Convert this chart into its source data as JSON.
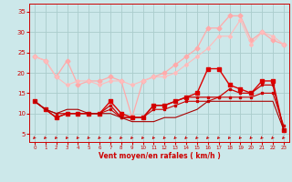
{
  "title": "",
  "xlabel": "Vent moyen/en rafales ( km/h )",
  "xlim": [
    -0.5,
    23.5
  ],
  "ylim": [
    3,
    37
  ],
  "yticks": [
    5,
    10,
    15,
    20,
    25,
    30,
    35
  ],
  "xticks": [
    0,
    1,
    2,
    3,
    4,
    5,
    6,
    7,
    8,
    9,
    10,
    11,
    12,
    13,
    14,
    15,
    16,
    17,
    18,
    19,
    20,
    21,
    22,
    23
  ],
  "bg_color": "#cce8ea",
  "grid_color": "#aacccc",
  "line1_x": [
    0,
    1,
    2,
    3,
    4,
    5,
    6,
    7,
    8,
    9,
    10,
    11,
    12,
    13,
    14,
    15,
    16,
    17,
    18,
    19,
    20,
    21,
    22,
    23
  ],
  "line1_y": [
    24,
    23,
    19,
    23,
    17,
    18,
    18,
    19,
    18,
    9,
    18,
    19,
    20,
    22,
    24,
    26,
    31,
    31,
    34,
    34,
    28,
    30,
    28,
    27
  ],
  "line1_color": "#ffaaaa",
  "line1_lw": 0.9,
  "line1_ms": 2.5,
  "line2_x": [
    0,
    1,
    2,
    3,
    4,
    5,
    6,
    7,
    8,
    9,
    10,
    11,
    12,
    13,
    14,
    15,
    16,
    17,
    18,
    19,
    20,
    21,
    22,
    23
  ],
  "line2_y": [
    24,
    23,
    19,
    17,
    18,
    18,
    17,
    18,
    18,
    17,
    18,
    19,
    19,
    20,
    22,
    24,
    26,
    29,
    29,
    33,
    27,
    30,
    29,
    27
  ],
  "line2_color": "#ffbbbb",
  "line2_lw": 0.8,
  "line2_ms": 2.0,
  "line3_x": [
    0,
    1,
    2,
    3,
    4,
    5,
    6,
    7,
    8,
    9,
    10,
    11,
    12,
    13,
    14,
    15,
    16,
    17,
    18,
    19,
    20,
    21,
    22,
    23
  ],
  "line3_y": [
    13,
    11,
    9,
    10,
    10,
    10,
    10,
    13,
    10,
    9,
    9,
    12,
    12,
    13,
    14,
    15,
    21,
    21,
    17,
    16,
    15,
    18,
    18,
    6
  ],
  "line3_color": "#dd0000",
  "line3_lw": 1.0,
  "line3_ms": 2.5,
  "line4_x": [
    0,
    1,
    2,
    3,
    4,
    5,
    6,
    7,
    8,
    9,
    10,
    11,
    12,
    13,
    14,
    15,
    16,
    17,
    18,
    19,
    20,
    21,
    22,
    23
  ],
  "line4_y": [
    13,
    11,
    9,
    10,
    10,
    10,
    10,
    12,
    9,
    9,
    9,
    12,
    12,
    13,
    14,
    14,
    14,
    14,
    16,
    15,
    15,
    17,
    17,
    6
  ],
  "line4_color": "#cc0000",
  "line4_lw": 0.9,
  "line4_ms": 2.0,
  "line5_x": [
    0,
    1,
    2,
    3,
    4,
    5,
    6,
    7,
    8,
    9,
    10,
    11,
    12,
    13,
    14,
    15,
    16,
    17,
    18,
    19,
    20,
    21,
    22,
    23
  ],
  "line5_y": [
    13,
    11,
    10,
    10,
    10,
    10,
    10,
    11,
    9,
    9,
    9,
    11,
    11,
    12,
    13,
    13,
    13,
    14,
    14,
    14,
    14,
    15,
    15,
    7
  ],
  "line5_color": "#cc0000",
  "line5_lw": 0.8,
  "line5_ms": 1.5,
  "line6_x": [
    0,
    1,
    2,
    3,
    4,
    5,
    6,
    7,
    8,
    9,
    10,
    11,
    12,
    13,
    14,
    15,
    16,
    17,
    18,
    19,
    20,
    21,
    22,
    23
  ],
  "line6_y": [
    13,
    11,
    10,
    11,
    11,
    10,
    10,
    10,
    9,
    8,
    8,
    8,
    9,
    9,
    10,
    11,
    13,
    13,
    13,
    13,
    13,
    13,
    13,
    6
  ],
  "line6_color": "#aa0000",
  "line6_lw": 0.8,
  "line6_ms": 0,
  "arrow_color": "#cc0000",
  "figsize": [
    3.2,
    2.0
  ],
  "dpi": 100
}
